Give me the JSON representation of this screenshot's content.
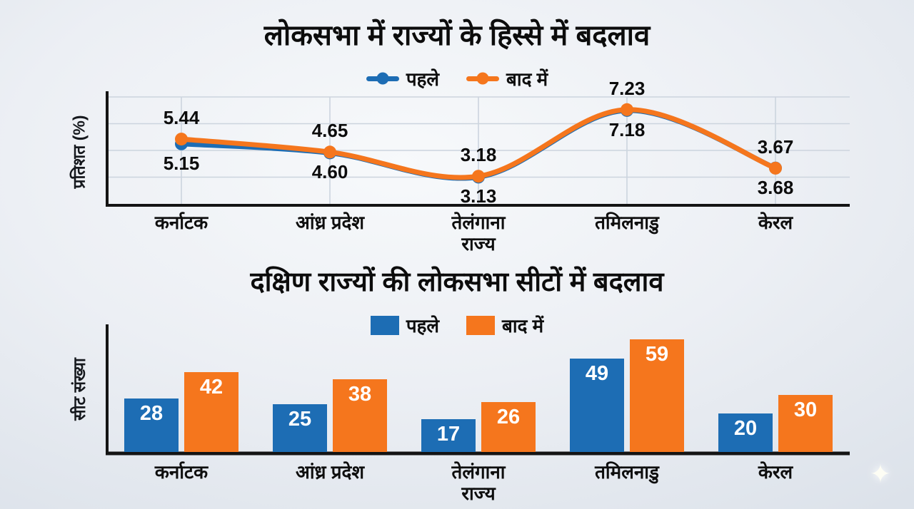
{
  "colors": {
    "before": "#1d6db4",
    "after": "#f5761d",
    "axis": "#141414",
    "grid": "#ccd4de",
    "label": "#0c0c0c",
    "bar_number": "#ffffff"
  },
  "icons": {
    "sparkle": "✦"
  },
  "chart_data": [
    {
      "type": "line",
      "title": "लोकसभा में राज्यों के हिस्से में बदलाव",
      "ylabel": "प्रतिशत (%)",
      "categories": [
        "कर्नाटक",
        "आंध्र प्रदेश",
        "तेलंगाना\nराज्य",
        "तमिलनाडु",
        "केरल"
      ],
      "series": [
        {
          "name": "पहले",
          "color_key": "before",
          "values": [
            5.15,
            4.6,
            3.13,
            7.18,
            3.68
          ],
          "labels": [
            "5.15",
            "4.60",
            "3.13",
            "7.18",
            "3.68"
          ],
          "label_side": "below"
        },
        {
          "name": "बाद में",
          "color_key": "after",
          "values": [
            5.44,
            4.65,
            3.18,
            7.23,
            3.67
          ],
          "labels": [
            "5.44",
            "4.65",
            "3.18",
            "7.23",
            "3.67"
          ],
          "label_side": "above"
        }
      ],
      "ylim": [
        1.5,
        8.0
      ],
      "grid": true,
      "legend_position": "top"
    },
    {
      "type": "bar",
      "title": "दक्षिण राज्यों की लोकसभा सीटों में बदलाव",
      "ylabel": "सीट संख्या",
      "categories": [
        "कर्नाटक",
        "आंध्र प्रदेश",
        "तेलंगाना\nराज्य",
        "तमिलनाडु",
        "केरल"
      ],
      "series": [
        {
          "name": "पहले",
          "color_key": "before",
          "values": [
            28,
            25,
            17,
            49,
            20
          ]
        },
        {
          "name": "बाद में",
          "color_key": "after",
          "values": [
            42,
            38,
            26,
            59,
            30
          ]
        }
      ],
      "ylim": [
        0,
        65
      ],
      "grid": false,
      "legend_position": "top"
    }
  ]
}
